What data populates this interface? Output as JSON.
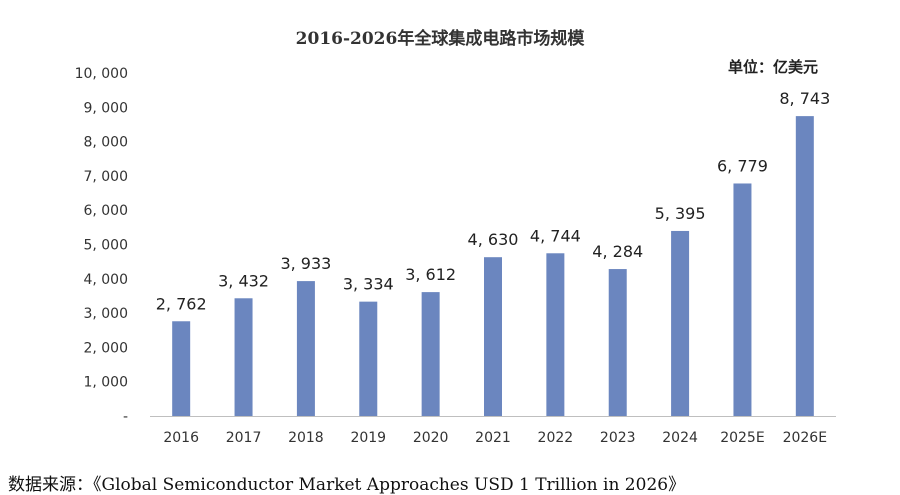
{
  "chart_data": {
    "type": "bar",
    "title": "2016-2026年全球集成电路市场规模",
    "unit_label": "单位：亿美元",
    "categories": [
      "2016",
      "2017",
      "2018",
      "2019",
      "2020",
      "2021",
      "2022",
      "2023",
      "2024",
      "2025E",
      "2026E"
    ],
    "values": [
      2762,
      3432,
      3933,
      3334,
      3612,
      4630,
      4744,
      4284,
      5395,
      6779,
      8743
    ],
    "data_labels": [
      "2, 762",
      "3, 432",
      "3, 933",
      "3, 334",
      "3, 612",
      "4, 630",
      "4, 744",
      "4, 284",
      "5, 395",
      "6, 779",
      "8, 743"
    ],
    "y_ticks": [
      0,
      1000,
      2000,
      3000,
      4000,
      5000,
      6000,
      7000,
      8000,
      9000,
      10000
    ],
    "y_tick_labels": [
      "-",
      "1, 000",
      "2, 000",
      "3, 000",
      "4, 000",
      "5, 000",
      "6, 000",
      "7, 000",
      "8, 000",
      "9, 000",
      "10, 000"
    ],
    "ylim": [
      0,
      10000
    ],
    "grid": false,
    "bar_color": "#6b86bf",
    "xlabel": "",
    "ylabel": ""
  },
  "source_text": "数据来源：《Global Semiconductor Market Approaches USD 1 Trillion in 2026》"
}
